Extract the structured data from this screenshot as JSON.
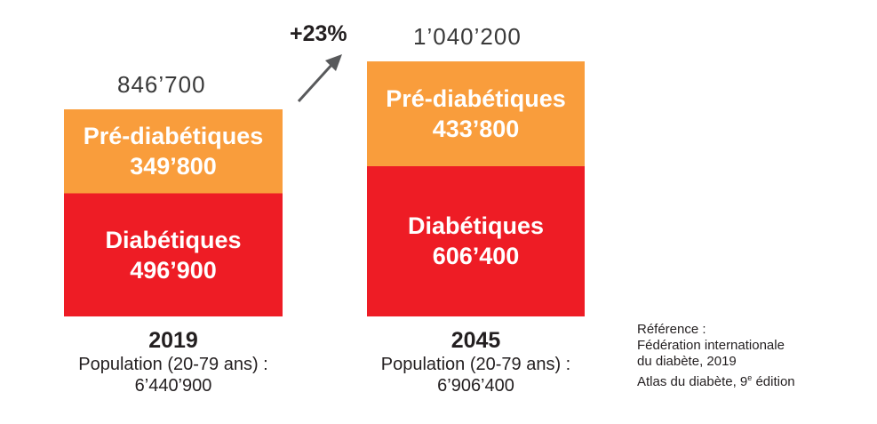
{
  "chart_data": {
    "type": "bar",
    "stacked": true,
    "categories": [
      "2019",
      "2045"
    ],
    "series": [
      {
        "name": "Diabétiques",
        "values": [
          496900,
          606400
        ],
        "labels": [
          "496’900",
          "606’400"
        ],
        "color": "#ee1c25"
      },
      {
        "name": "Pré-diabétiques",
        "values": [
          349800,
          433800
        ],
        "labels": [
          "349’800",
          "433’800"
        ],
        "color": "#f99d3c"
      }
    ],
    "totals": [
      "846’700",
      "1’040’200"
    ],
    "population_label": "Population (20-79 ans) :",
    "populations": [
      "6’440’900",
      "6’906’400"
    ],
    "growth_label": "+23%",
    "arrow_color": "#58595b"
  },
  "reference": {
    "heading": "Référence :",
    "lines": [
      "Fédération internationale",
      "du diabète, 2019"
    ],
    "atlas_text": "Atlas du diabète, 9",
    "atlas_sup": "e",
    "atlas_suffix": " édition"
  }
}
